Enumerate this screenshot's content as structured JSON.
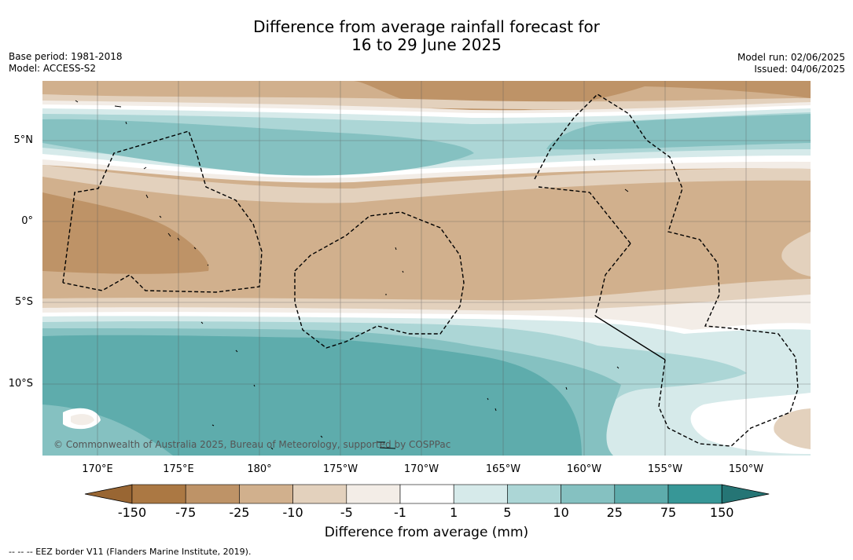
{
  "title_line1": "Difference from average rainfall forecast for",
  "title_line2": "16 to 29 June 2025",
  "base_period": "Base period: 1981-2018",
  "model": "Model: ACCESS-S2",
  "model_run": "Model run: 02/06/2025",
  "issued": "Issued: 04/06/2025",
  "copyright": "© Commonwealth of Australia 2025, Bureau of Meteorology, supported by COSPPac",
  "lat_labels": [
    "5°N",
    "0°",
    "5°S",
    "10°S"
  ],
  "lon_labels": [
    "170°E",
    "175°E",
    "180°",
    "175°W",
    "170°W",
    "165°W",
    "160°W",
    "155°W",
    "150°W"
  ],
  "colorbar": {
    "labels": [
      "-150",
      "-75",
      "-25",
      "-10",
      "-5",
      "-1",
      "1",
      "5",
      "10",
      "25",
      "75",
      "150"
    ],
    "colors": [
      "#996633",
      "#ab7843",
      "#be9367",
      "#d1b08d",
      "#e3d1bd",
      "#f3ede7",
      "#ffffff",
      "#d6eaea",
      "#acd6d6",
      "#85c1c1",
      "#5eacac",
      "#379797",
      "#257575"
    ],
    "title": "Difference from average (mm)"
  },
  "legend_text": "--  --  -- EEZ border V11 (Flanders Marine Institute, 2019)."
}
